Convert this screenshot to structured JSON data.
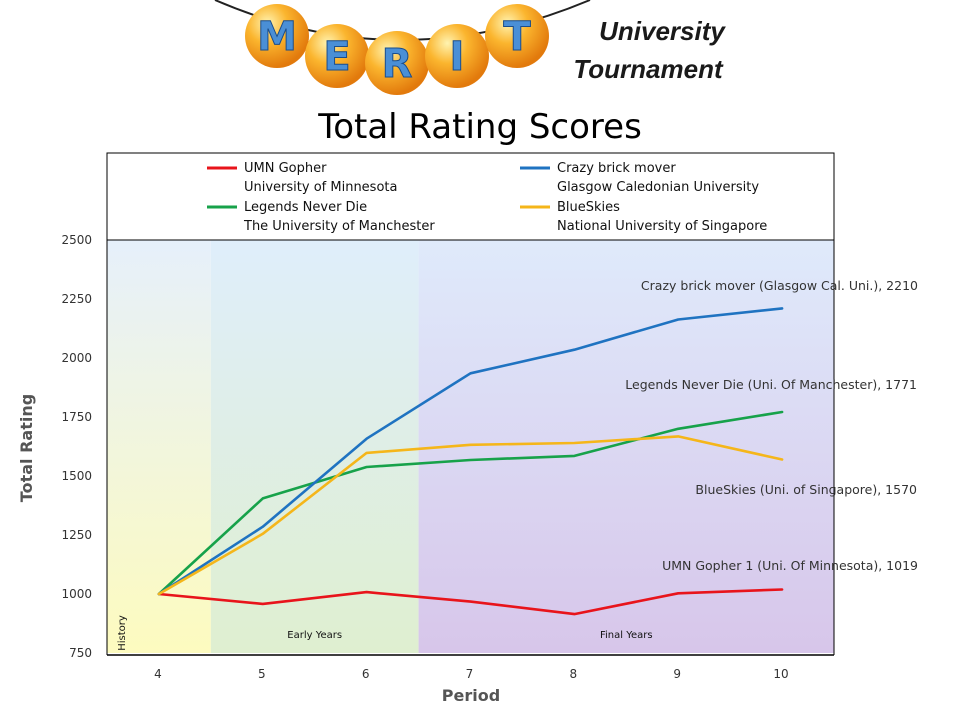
{
  "header": {
    "logo_letters": [
      "M",
      "E",
      "R",
      "I",
      "T"
    ],
    "subtitle_line1": "University",
    "subtitle_line2": "Tournament"
  },
  "colors": {
    "logo_ball": "#f5a623",
    "logo_letter": "#4a8fd6",
    "history_region": "#fdfbbf",
    "early_region": "#dfefd0",
    "final_region": "#d7c6ea",
    "plot_top": "#d9e9fb"
  },
  "chart_data": {
    "type": "line",
    "title": "Total Rating Scores",
    "xlabel": "Period",
    "ylabel": "Total Rating",
    "x": [
      4,
      5,
      6,
      7,
      8,
      9,
      10
    ],
    "xlim": [
      3.5,
      10.5
    ],
    "ylim": [
      750,
      2500
    ],
    "yticks": [
      750,
      1000,
      1250,
      1500,
      1750,
      2000,
      2250,
      2500
    ],
    "grid": false,
    "legend_position": "top",
    "regions": [
      {
        "label": "History",
        "from": 3.5,
        "to": 4.5,
        "orientation": "vertical"
      },
      {
        "label": "Early Years",
        "from": 4.5,
        "to": 6.5,
        "orientation": "horizontal"
      },
      {
        "label": "Final Years",
        "from": 6.5,
        "to": 10.5,
        "orientation": "horizontal"
      }
    ],
    "series": [
      {
        "name": "UMN Gopher",
        "org": "University of Minnesota",
        "color": "#e8141b",
        "values": [
          1000,
          958,
          1008,
          968,
          915,
          1003,
          1019
        ],
        "annotation": "UMN Gopher 1 (Uni. Of Minnesota), 1019"
      },
      {
        "name": "Legends Never Die",
        "org": "The University of Manchester",
        "color": "#17a24a",
        "values": [
          1000,
          1405,
          1538,
          1568,
          1585,
          1700,
          1771
        ],
        "annotation": "Legends Never Die (Uni. Of Manchester), 1771"
      },
      {
        "name": "Crazy brick mover",
        "org": "Glasgow Caledonian University",
        "color": "#1f73c1",
        "values": [
          1000,
          1285,
          1658,
          1935,
          2035,
          2163,
          2210
        ],
        "annotation": "Crazy brick mover  (Glasgow Cal. Uni.), 2210"
      },
      {
        "name": "BlueSkies",
        "org": "National University of Singapore",
        "color": "#f5b61a",
        "values": [
          1000,
          1255,
          1598,
          1632,
          1640,
          1668,
          1570
        ],
        "annotation": "BlueSkies (Uni. of Singapore), 1570"
      }
    ]
  }
}
